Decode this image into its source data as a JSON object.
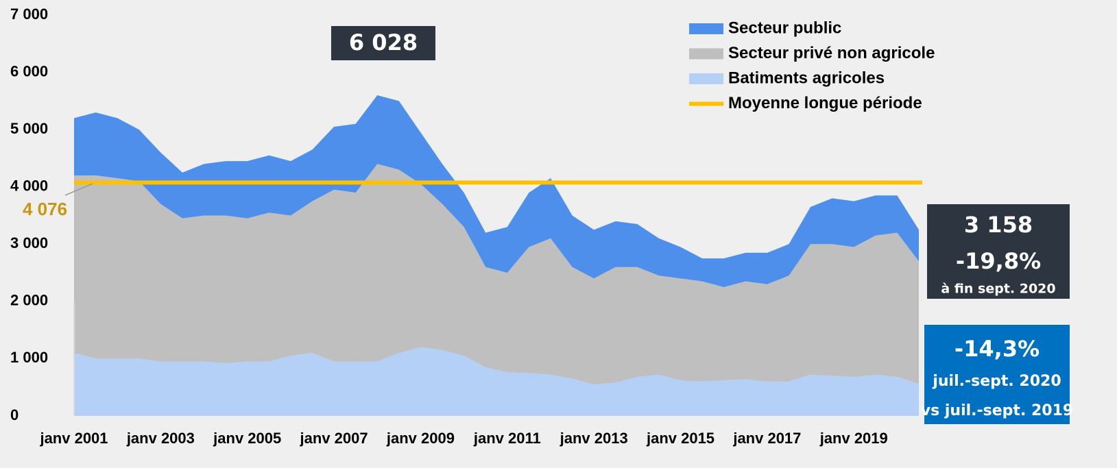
{
  "chart_data": {
    "type": "stacked_area",
    "categories": [
      "janv 2001",
      null,
      null,
      null,
      "janv 2003",
      null,
      null,
      null,
      "janv 2005",
      null,
      null,
      null,
      "janv 2007",
      null,
      null,
      null,
      "janv 2009",
      null,
      null,
      null,
      "janv 2011",
      null,
      null,
      null,
      "janv 2013",
      null,
      null,
      null,
      "janv 2015",
      null,
      null,
      null,
      "janv 2017",
      null,
      null,
      null,
      "janv 2019",
      null,
      null,
      null
    ],
    "series": [
      {
        "name": "Batiments agricoles",
        "color": "#b4d0f7",
        "values": [
          1100,
          1000,
          1000,
          1000,
          950,
          950,
          950,
          920,
          950,
          950,
          1050,
          1100,
          950,
          950,
          950,
          1100,
          1200,
          1150,
          1050,
          850,
          760,
          750,
          720,
          650,
          550,
          580,
          680,
          720,
          620,
          600,
          620,
          640,
          600,
          600,
          720,
          700,
          680,
          720,
          680,
          560
        ]
      },
      {
        "name": "Secteur privé non agricole",
        "color": "#bfbfbf",
        "values": [
          3100,
          3200,
          3150,
          3100,
          2750,
          2500,
          2550,
          2580,
          2500,
          2600,
          2450,
          2650,
          3000,
          2950,
          3450,
          3200,
          2850,
          2550,
          2250,
          1750,
          1740,
          2200,
          2380,
          1950,
          1850,
          2020,
          1920,
          1730,
          1780,
          1750,
          1630,
          1710,
          1700,
          1850,
          2280,
          2300,
          2270,
          2430,
          2520,
          2140
        ]
      },
      {
        "name": "Secteur public",
        "color": "#4d8fea",
        "values": [
          1000,
          1100,
          1050,
          900,
          900,
          800,
          900,
          950,
          1000,
          1000,
          950,
          900,
          1100,
          1200,
          1200,
          1200,
          900,
          700,
          600,
          600,
          800,
          950,
          1050,
          900,
          850,
          800,
          750,
          650,
          550,
          400,
          500,
          500,
          550,
          550,
          650,
          800,
          800,
          700,
          650,
          550
        ]
      }
    ],
    "legend_order": [
      2,
      1,
      0
    ],
    "mean": {
      "name": "Moyenne longue période",
      "value": 4076,
      "label": "4 076",
      "color": "#ffc000"
    },
    "peak": {
      "value": 6028,
      "label": "6 028"
    },
    "annotations": [
      "3 158",
      "-19,8%",
      "à fin sept. 2020",
      "-14,3%",
      "juil.-sept. 2020",
      "vs juil.-sept. 2019"
    ],
    "ylim": [
      0,
      7000
    ],
    "yticks": [
      0,
      {
        "value": 1000,
        "label": "1 000"
      },
      {
        "value": 2000,
        "label": "2 000"
      },
      {
        "value": 3000,
        "label": "3 000"
      },
      {
        "value": 4000,
        "label": "4 000"
      },
      {
        "value": 5000,
        "label": "5 000"
      },
      {
        "value": 6000,
        "label": "6 000"
      },
      {
        "value": 7000,
        "label": "7 000"
      }
    ],
    "grid": false
  }
}
